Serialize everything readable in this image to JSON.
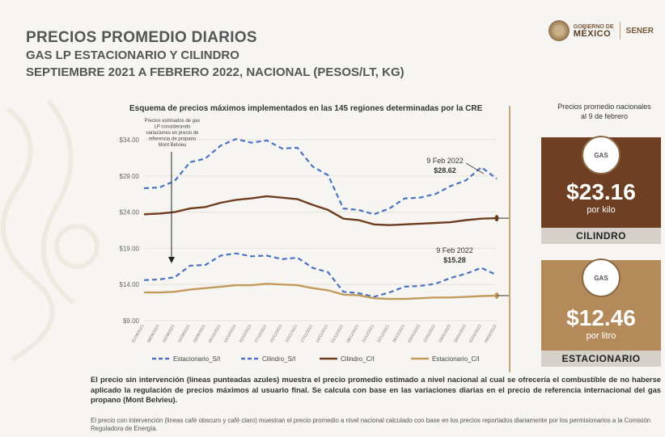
{
  "header": {
    "title": "PRECIOS PROMEDIO DIARIOS",
    "subtitle": "GAS LP ESTACIONARIO Y CILINDRO",
    "period": "SEPTIEMBRE 2021 A FEBRERO 2022, NACIONAL (PESOS/LT, KG)"
  },
  "logos": {
    "gob_line1": "GOBIERNO DE",
    "gob_line2": "MÉXICO",
    "sener": "SENER"
  },
  "colors": {
    "blue": "#4a72c2",
    "dark_brown": "#6e3d1f",
    "light_brown": "#c29a5c",
    "card_dark": "#6e3f22",
    "card_light": "#b48a5a"
  },
  "chart_data": {
    "type": "line",
    "title": "Esquema de precios máximos implementados en las 145 regiones determinadas por la CRE",
    "ylim": [
      9,
      34
    ],
    "yticks": [
      "$34.00",
      "$29.00",
      "$24.00",
      "$19.00",
      "$14.00",
      "$9.00"
    ],
    "ytick_values": [
      34,
      29,
      24,
      19,
      14,
      9
    ],
    "x": [
      "01/09/2021",
      "08/09/2021",
      "15/09/2021",
      "22/09/2021",
      "29/09/2021",
      "06/10/2021",
      "13/10/2021",
      "20/10/2021",
      "27/10/2021",
      "03/11/2021",
      "10/11/2021",
      "17/11/2021",
      "24/11/2021",
      "01/12/2021",
      "08/12/2021",
      "15/12/2021",
      "22/12/2021",
      "29/12/2021",
      "05/01/2022",
      "12/01/2022",
      "19/01/2022",
      "26/01/2022",
      "02/02/2022",
      "09/02/2022"
    ],
    "series": [
      {
        "name": "Estacionario_S/I",
        "style": "dashed",
        "color": "#4a72c2",
        "values": [
          14.6,
          14.7,
          15.0,
          16.6,
          16.7,
          18.0,
          18.3,
          17.9,
          18.0,
          17.5,
          17.7,
          16.3,
          15.7,
          13.0,
          12.8,
          12.3,
          12.9,
          13.7,
          13.8,
          14.1,
          14.9,
          15.5,
          16.3,
          15.3
        ]
      },
      {
        "name": "Cilindro_S/I",
        "style": "dashed",
        "color": "#4a72c2",
        "values": [
          27.3,
          27.4,
          28.3,
          30.9,
          31.4,
          33.2,
          34.1,
          33.6,
          33.9,
          32.8,
          32.9,
          30.3,
          29.1,
          24.5,
          24.3,
          23.7,
          24.5,
          25.9,
          26.0,
          26.5,
          27.6,
          28.4,
          30.2,
          28.62
        ]
      },
      {
        "name": "Cilindro_C/I",
        "style": "solid",
        "color": "#6e3d1f",
        "values": [
          23.7,
          23.8,
          24.0,
          24.5,
          24.7,
          25.3,
          25.7,
          25.9,
          26.2,
          26.0,
          25.8,
          25.0,
          24.3,
          23.1,
          22.9,
          22.3,
          22.2,
          22.3,
          22.4,
          22.5,
          22.6,
          22.9,
          23.1,
          23.16
        ]
      },
      {
        "name": "Estacionario_C/I",
        "style": "solid",
        "color": "#c29a5c",
        "values": [
          12.9,
          12.9,
          13.0,
          13.3,
          13.5,
          13.7,
          13.9,
          13.9,
          14.1,
          14.0,
          13.9,
          13.5,
          13.2,
          12.6,
          12.5,
          12.1,
          12.0,
          12.0,
          12.1,
          12.2,
          12.2,
          12.3,
          12.4,
          12.46
        ]
      }
    ],
    "annotations": [
      {
        "text": "9 Feb 2022",
        "value": "$28.62"
      },
      {
        "text": "9 Feb 2022",
        "value": "$15.28"
      }
    ],
    "note_lines": [
      "Precios  estimados de gas",
      "LP considerando",
      "variaciones en precio de",
      "referencia de propano",
      "Mont Belvieu"
    ],
    "legend_position": "bottom"
  },
  "side_panel": {
    "label_line1": "Precios promedio nacionales",
    "label_line2": "al 9 de febrero",
    "cilindro": {
      "icon": "gas-cylinder-icon",
      "icon_text": "GAS",
      "price": "$23.16",
      "unit": "por kilo",
      "label": "CILINDRO"
    },
    "estacionario": {
      "icon": "gas-tank-icon",
      "icon_text": "GAS",
      "price": "$12.46",
      "unit": "por litro",
      "label": "ESTACIONARIO"
    }
  },
  "footer": {
    "text1": "El precio sin intervención (lineas punteadas azules) muestra el precio promedio estimado a nivel nacional al cual se ofrecería el combustible de no haberse aplicado la regulación de precios máximos al usuario final. Se calcula con base en las variaciones diarias en el precio de referencia internacional del gas propano (Mont Belvieu).",
    "text2": "El precio con intervención (lineas café obscuro y café claro) muestran el precio promedio a nivel nacional calculado con base en los precios reportados diariamente por los permisionarios a la Comisión Reguladora de Energía."
  }
}
